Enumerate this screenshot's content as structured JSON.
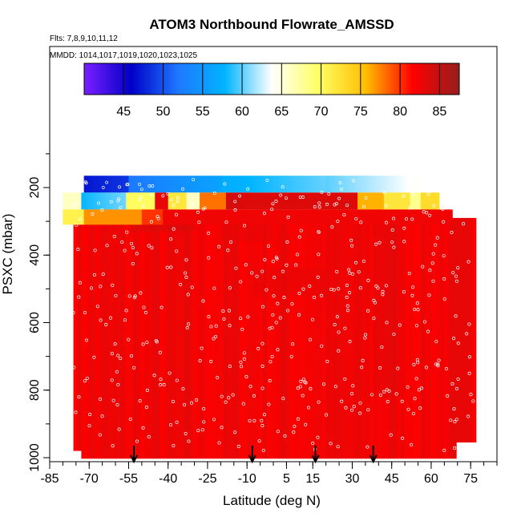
{
  "chart_data": {
    "type": "heatmap",
    "title": "ATOM3 Northbound Flowrate_AMSSD",
    "subtitle_flights": "Flts: 7,8,9,10,11,12",
    "subtitle_dates": "MMDD: 1014,1017,1019,1020,1023,1025",
    "xlabel": "Latitude (deg N)",
    "ylabel": "PSXC (mbar)",
    "xlim": [
      -85,
      85
    ],
    "ylim": [
      1000,
      50
    ],
    "x_ticks": [
      "-85",
      "-70",
      "-55",
      "-40",
      "-25",
      "-10",
      "5",
      "15",
      "30",
      "45",
      "60",
      "75"
    ],
    "x_tick_values": [
      -85,
      -70,
      -55,
      -40,
      -25,
      -10,
      5,
      15,
      30,
      45,
      60,
      75
    ],
    "y_ticks": [
      "200",
      "400",
      "600",
      "800",
      "1000"
    ],
    "y_tick_values": [
      200,
      400,
      600,
      800,
      1000
    ],
    "colorbar": {
      "range": [
        40,
        87.5
      ],
      "ticks": [
        "45",
        "50",
        "55",
        "60",
        "65",
        "70",
        "75",
        "80",
        "85"
      ],
      "tick_values": [
        45,
        50,
        55,
        60,
        65,
        70,
        75,
        80,
        85
      ],
      "colors": [
        "#7b1fff",
        "#0000c8",
        "#1e78ff",
        "#00b4ff",
        "#ffffff",
        "#ffff64",
        "#ffbe00",
        "#ff0000",
        "#961e1e"
      ]
    },
    "flight_markers_latitude": [
      -53,
      -8,
      16,
      38
    ]
  }
}
